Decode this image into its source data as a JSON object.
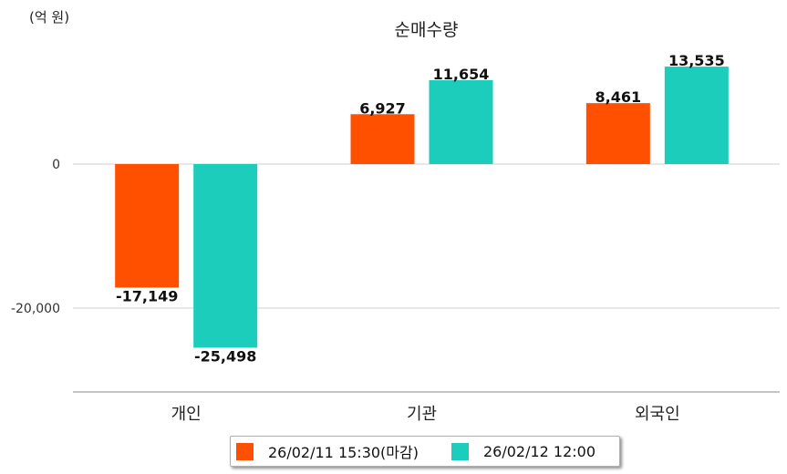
{
  "chart_data": {
    "type": "bar",
    "title": "순매수량",
    "unit_label": "(억 원)",
    "categories": [
      "개인",
      "기관",
      "외국인"
    ],
    "series": [
      {
        "name": "26/02/11 15:30(마감)",
        "color": "#ff5000",
        "values": [
          -17149,
          6927,
          8461
        ]
      },
      {
        "name": "26/02/12 12:00",
        "color": "#1ccdbc",
        "values": [
          -25498,
          11654,
          13535
        ]
      }
    ],
    "y_ticks": [
      0,
      -20000
    ],
    "y_tick_labels": [
      "0",
      "-20,000"
    ],
    "data_labels": [
      [
        "-17,149",
        "6,927",
        "8,461"
      ],
      [
        "-25,498",
        "11,654",
        "13,535"
      ]
    ],
    "ylim": [
      -32000,
      22000
    ],
    "grid": true,
    "legend": "bottom-center"
  }
}
